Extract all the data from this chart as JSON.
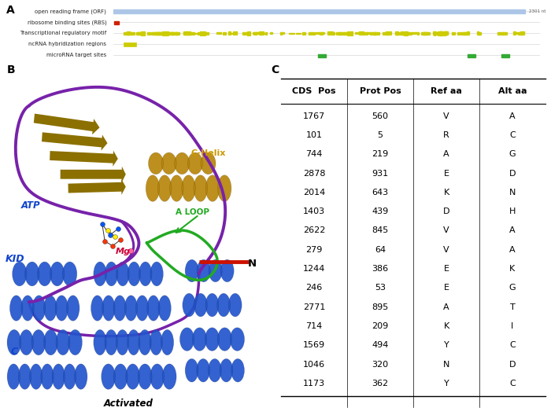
{
  "panel_a_label": "A",
  "panel_b_label": "B",
  "panel_c_label": "C",
  "orf_label": "open reading frame (ORF)",
  "rbs_label": "ribosome binding sites (RBS)",
  "trm_label": "Transcriptional regulatory motif",
  "ncRNA_label": "ncRNA hybridization regions",
  "miRNA_label": "microRNA target sites",
  "orf_end_label": "2301 nt",
  "table_headers": [
    "CDS  Pos",
    "Prot Pos",
    "Ref aa",
    "Alt aa"
  ],
  "table_data": [
    [
      "1767",
      "560",
      "V",
      "A"
    ],
    [
      "101",
      "5",
      "R",
      "C"
    ],
    [
      "744",
      "219",
      "A",
      "G"
    ],
    [
      "2878",
      "931",
      "E",
      "D"
    ],
    [
      "2014",
      "643",
      "K",
      "N"
    ],
    [
      "1403",
      "439",
      "D",
      "H"
    ],
    [
      "2622",
      "845",
      "V",
      "A"
    ],
    [
      "279",
      "64",
      "V",
      "A"
    ],
    [
      "1244",
      "386",
      "E",
      "K"
    ],
    [
      "246",
      "53",
      "E",
      "G"
    ],
    [
      "2771",
      "895",
      "A",
      "T"
    ],
    [
      "714",
      "209",
      "K",
      "I"
    ],
    [
      "1569",
      "494",
      "Y",
      "C"
    ],
    [
      "1046",
      "320",
      "N",
      "D"
    ],
    [
      "1173",
      "362",
      "Y",
      "C"
    ]
  ],
  "orf_color": "#adc6e8",
  "rbs_color": "#cc2200",
  "trm_color": "#cccc00",
  "ncrna_color": "#cccc00",
  "mirna_color": "#33aa33",
  "bg_color": "#ffffff",
  "grid_color": "#cccccc",
  "blue": "#2255cc",
  "gold": "#b8860b",
  "purple": "#7722aa",
  "green": "#22aa22",
  "red_arrow": "#cc1100",
  "atp_blue": "#0055ff",
  "atp_red": "#ff2200",
  "atp_yellow": "#ffee00",
  "label_ATP_color": "#1144cc",
  "label_CHelix_color": "#cc9900",
  "label_Mg_color": "#cc0033",
  "label_ALOOP_color": "#22aa22",
  "label_KID_color": "#1144cc",
  "label_C_color": "#1144cc"
}
